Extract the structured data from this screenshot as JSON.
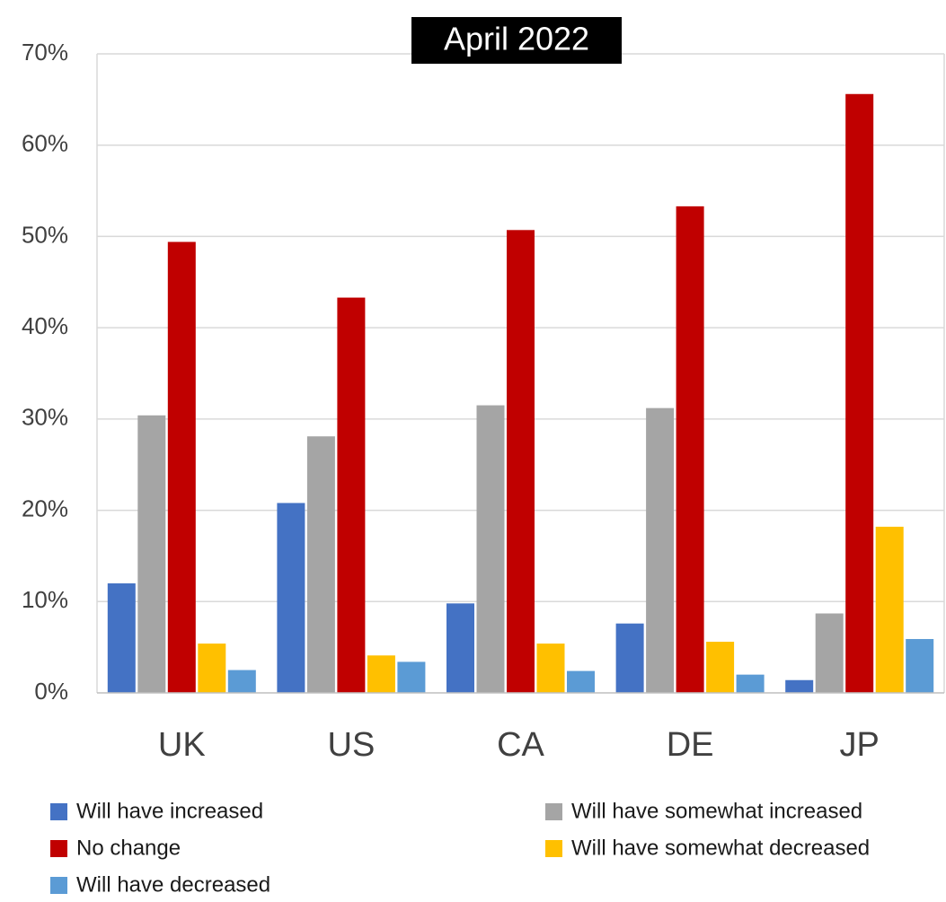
{
  "chart_data": {
    "type": "bar",
    "title": "April 2022",
    "categories": [
      "UK",
      "US",
      "CA",
      "DE",
      "JP"
    ],
    "series": [
      {
        "name": "Will have increased",
        "color": "#4472C4",
        "values": [
          12.0,
          20.8,
          9.8,
          7.6,
          1.4
        ]
      },
      {
        "name": "Will have somewhat increased",
        "color": "#A5A5A5",
        "values": [
          30.4,
          28.1,
          31.5,
          31.2,
          8.7
        ]
      },
      {
        "name": "No change",
        "color": "#C00000",
        "values": [
          49.4,
          43.3,
          50.7,
          53.3,
          65.6
        ]
      },
      {
        "name": "Will have somewhat decreased",
        "color": "#FFC000",
        "values": [
          5.4,
          4.1,
          5.4,
          5.6,
          18.2
        ]
      },
      {
        "name": "Will have decreased",
        "color": "#5B9BD5",
        "values": [
          2.5,
          3.4,
          2.4,
          2.0,
          5.9
        ]
      }
    ],
    "ylim": [
      0,
      70
    ],
    "yticks": [
      0,
      10,
      20,
      30,
      40,
      50,
      60,
      70
    ],
    "ytick_labels": [
      "0%",
      "10%",
      "20%",
      "30%",
      "40%",
      "50%",
      "60%",
      "70%"
    ],
    "xlabel": "",
    "ylabel": "",
    "grid": true,
    "legend_position": "bottom"
  }
}
